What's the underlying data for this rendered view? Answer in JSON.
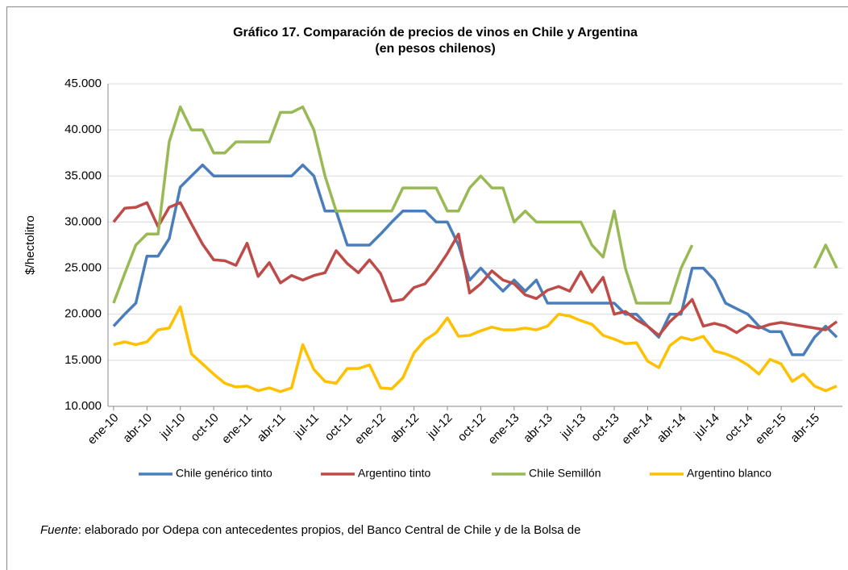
{
  "chart_data": {
    "type": "line",
    "title": "Gráfico 17. Comparación de precios de vinos en Chile y Argentina",
    "subtitle": "(en pesos chilenos)",
    "y_label": "$/hectolitro",
    "categories": [
      "ene-10",
      null,
      null,
      "abr-10",
      null,
      null,
      "jul-10",
      null,
      null,
      "oct-10",
      null,
      null,
      "ene-11",
      null,
      null,
      "abr-11",
      null,
      null,
      "jul-11",
      null,
      null,
      "oct-11",
      null,
      null,
      "ene-12",
      null,
      null,
      "abr-12",
      null,
      null,
      "jul-12",
      null,
      null,
      "oct-12",
      null,
      null,
      "ene-13",
      null,
      null,
      "abr-13",
      null,
      null,
      "jul-13",
      null,
      null,
      "oct-13",
      null,
      null,
      "ene-14",
      null,
      null,
      "abr-14",
      null,
      null,
      "jul-14",
      null,
      null,
      "oct-14",
      null,
      null,
      "ene-15",
      null,
      null,
      "abr-15",
      null,
      null
    ],
    "series": [
      {
        "name": "Chile genérico tinto",
        "color": "#4a7ebb",
        "values": [
          18.7,
          20,
          21.2,
          26.3,
          26.3,
          28.2,
          33.8,
          35,
          36.2,
          35,
          35,
          35,
          35,
          35,
          35,
          35,
          35,
          36.2,
          35,
          31.2,
          31.2,
          27.5,
          27.5,
          27.5,
          28.7,
          30,
          31.2,
          31.2,
          31.2,
          30,
          30,
          27.5,
          23.7,
          25,
          23.7,
          22.5,
          23.7,
          22.5,
          23.7,
          21.2,
          21.2,
          21.2,
          21.2,
          21.2,
          21.2,
          21.2,
          20,
          20,
          18.7,
          17.5,
          20,
          20,
          25,
          25,
          23.7,
          21.2,
          20.6,
          20,
          18.7,
          18.1,
          18.1,
          15.6,
          15.6,
          17.5,
          18.7,
          17.5
        ]
      },
      {
        "name": "Argentino tinto",
        "color": "#be4b48",
        "values": [
          30,
          31.5,
          31.6,
          32.1,
          29.5,
          31.6,
          32.1,
          29.8,
          27.6,
          25.9,
          25.8,
          25.3,
          27.7,
          24.1,
          25.6,
          23.4,
          24.2,
          23.7,
          24.2,
          24.5,
          26.9,
          25.5,
          24.5,
          25.9,
          24.4,
          21.4,
          21.6,
          22.9,
          23.3,
          24.8,
          26.6,
          28.7,
          22.3,
          23.3,
          24.7,
          23.7,
          23.3,
          22.1,
          21.7,
          22.6,
          23,
          22.5,
          24.6,
          22.4,
          24,
          20,
          20.3,
          19.4,
          18.7,
          17.7,
          19.2,
          20.3,
          21.6,
          18.7,
          19,
          18.7,
          18,
          18.8,
          18.5,
          18.9,
          19.1,
          18.9,
          18.7,
          18.5,
          18.3,
          19.2
        ]
      },
      {
        "name": "Chile Semillón",
        "color": "#98b954",
        "values": [
          21.2,
          24.4,
          27.5,
          28.7,
          28.7,
          38.7,
          42.5,
          40,
          40,
          37.5,
          37.5,
          38.7,
          38.7,
          38.7,
          38.7,
          41.9,
          41.9,
          42.5,
          40,
          35,
          31.2,
          31.2,
          31.2,
          31.2,
          31.2,
          31.2,
          33.7,
          33.7,
          33.7,
          33.7,
          31.2,
          31.2,
          33.7,
          35,
          33.7,
          33.7,
          30,
          31.2,
          30,
          30,
          30,
          30,
          30,
          27.5,
          26.2,
          31.2,
          25,
          21.2,
          21.2,
          21.2,
          21.2,
          25,
          27.5,
          null,
          null,
          null,
          null,
          null,
          null,
          null,
          null,
          null,
          null,
          25,
          27.5,
          25
        ]
      },
      {
        "name": "Argentino blanco",
        "color": "#ffc000",
        "values": [
          16.7,
          17,
          16.7,
          17,
          18.3,
          18.5,
          20.8,
          15.7,
          14.6,
          13.5,
          12.5,
          12.1,
          12.2,
          11.7,
          12,
          11.6,
          12,
          16.7,
          14,
          12.7,
          12.5,
          14.1,
          14.1,
          14.5,
          12,
          11.9,
          13.1,
          15.8,
          17.2,
          18,
          19.6,
          17.6,
          17.7,
          18.2,
          18.6,
          18.3,
          18.3,
          18.5,
          18.3,
          18.7,
          20,
          19.8,
          19.3,
          18.9,
          17.7,
          17.3,
          16.8,
          16.9,
          14.9,
          14.2,
          16.6,
          17.5,
          17.2,
          17.6,
          16,
          15.7,
          15.2,
          14.5,
          13.5,
          15.1,
          14.6,
          12.7,
          13.5,
          12.2,
          11.7,
          12.2
        ]
      }
    ],
    "ylim": [
      10,
      45
    ],
    "yticks": [
      {
        "value": 10,
        "label": "10.000"
      },
      {
        "value": 15,
        "label": "15.000"
      },
      {
        "value": 20,
        "label": "20.000"
      },
      {
        "value": 25,
        "label": "25.000"
      },
      {
        "value": 30,
        "label": "30.000"
      },
      {
        "value": 35,
        "label": "35.000"
      },
      {
        "value": 40,
        "label": "40.000"
      },
      {
        "value": 45,
        "label": "45.000"
      }
    ],
    "grid": true,
    "legend": "bottom",
    "footnote_label": "Fuente",
    "footnote": ": elaborado por Odepa con antecedentes propios, del Banco Central de Chile y de la Bolsa de"
  }
}
